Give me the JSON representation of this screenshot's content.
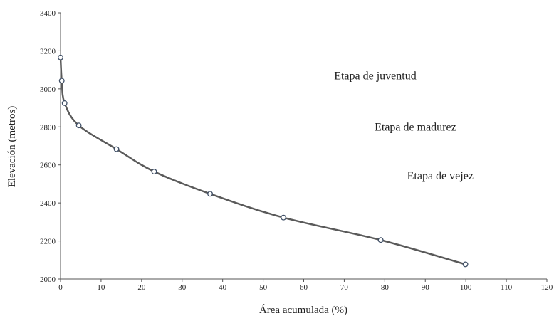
{
  "chart_data": {
    "type": "line",
    "title": "",
    "xlabel": "Área acumulada (%)",
    "ylabel": "Elevación (metros)",
    "xlim": [
      0,
      120
    ],
    "ylim": [
      2000,
      3400
    ],
    "x_ticks": [
      0,
      10,
      20,
      30,
      40,
      50,
      60,
      70,
      80,
      90,
      100,
      110,
      120
    ],
    "y_ticks": [
      2000,
      2200,
      2400,
      2600,
      2800,
      3000,
      3200,
      3400
    ],
    "grid": false,
    "legend": "none",
    "series": [
      {
        "color": "#5a5a5a",
        "marker": "open-circle",
        "points": [
          {
            "x": 0,
            "y": 3165
          },
          {
            "x": 0.3,
            "y": 3043
          },
          {
            "x": 1,
            "y": 2925
          },
          {
            "x": 4.5,
            "y": 2808
          },
          {
            "x": 13.8,
            "y": 2683
          },
          {
            "x": 23.1,
            "y": 2565
          },
          {
            "x": 36.9,
            "y": 2448
          },
          {
            "x": 55,
            "y": 2323
          },
          {
            "x": 79,
            "y": 2205
          },
          {
            "x": 99.9,
            "y": 2077
          }
        ]
      }
    ],
    "annotations": [
      {
        "text": "Etapa de juventud",
        "x": 67.5,
        "y": 3050
      },
      {
        "text": "Etapa de madurez",
        "x": 77.5,
        "y": 2780
      },
      {
        "text": "Etapa de vejez",
        "x": 85.5,
        "y": 2525
      }
    ]
  }
}
